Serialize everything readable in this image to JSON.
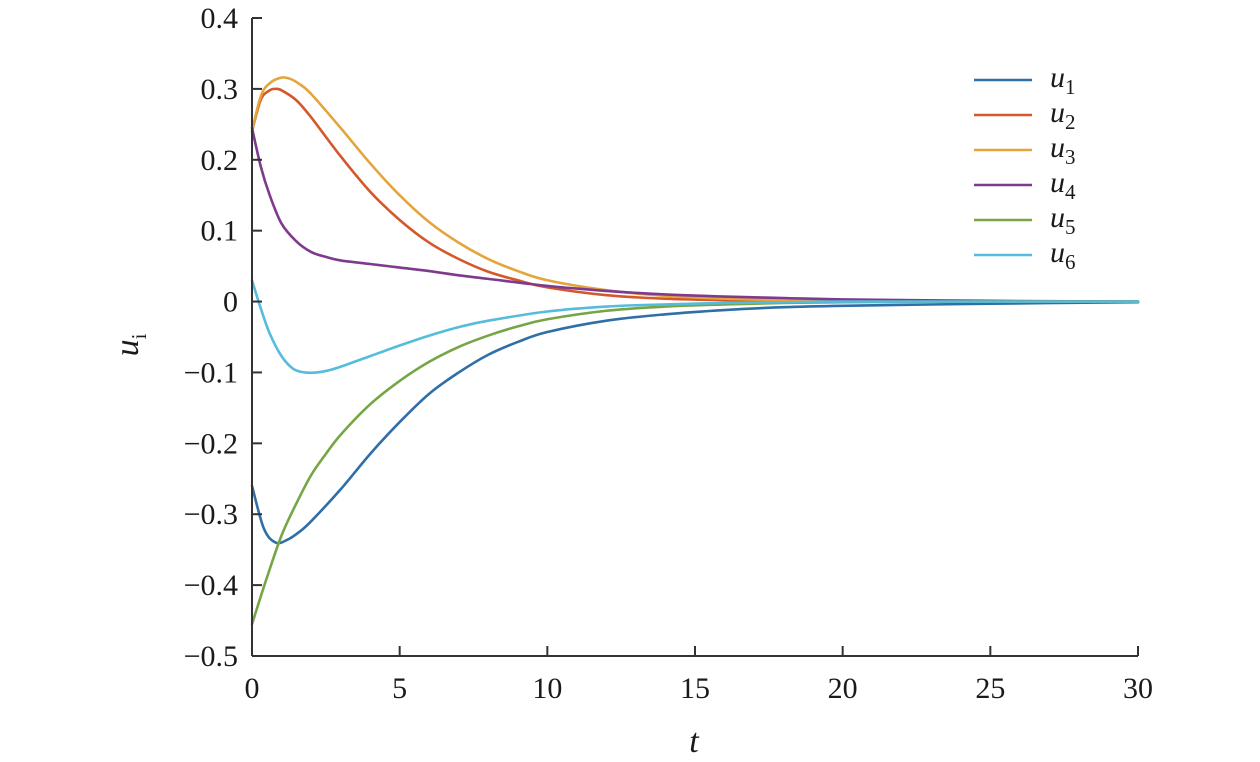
{
  "chart_data": {
    "type": "line",
    "xlabel": "t",
    "ylabel": "u",
    "ylabel_sub": "i",
    "xlim": [
      0,
      30
    ],
    "ylim": [
      -0.5,
      0.4
    ],
    "xticks": [
      0,
      5,
      10,
      15,
      20,
      25,
      30
    ],
    "xtick_labels": [
      "0",
      "5",
      "10",
      "15",
      "20",
      "25",
      "30"
    ],
    "yticks": [
      -0.5,
      -0.4,
      -0.3,
      -0.2,
      -0.1,
      0,
      0.1,
      0.2,
      0.3,
      0.4
    ],
    "ytick_labels": [
      "−0.5",
      "−0.4",
      "−0.3",
      "−0.2",
      "−0.1",
      "0",
      "0.1",
      "0.2",
      "0.3",
      "0.4"
    ],
    "grid": false,
    "legend_position": "top-right",
    "series": [
      {
        "name": "u",
        "sub": "1",
        "color": "#2f6fa6",
        "x": [
          0,
          0.4,
          0.8,
          1.2,
          1.6,
          2,
          3,
          4,
          5,
          6,
          7,
          8,
          9,
          10,
          12,
          14,
          16,
          18,
          20,
          25,
          30
        ],
        "y": [
          -0.26,
          -0.32,
          -0.34,
          -0.336,
          -0.325,
          -0.31,
          -0.265,
          -0.215,
          -0.17,
          -0.13,
          -0.1,
          -0.075,
          -0.057,
          -0.043,
          -0.027,
          -0.018,
          -0.012,
          -0.008,
          -0.006,
          -0.003,
          -0.001
        ]
      },
      {
        "name": "u",
        "sub": "2",
        "color": "#d4582a",
        "x": [
          0,
          0.3,
          0.6,
          0.8,
          1,
          1.5,
          2,
          3,
          4,
          5,
          6,
          7,
          8,
          9,
          10,
          12,
          14,
          16,
          18,
          20,
          25,
          30
        ],
        "y": [
          0.24,
          0.285,
          0.298,
          0.3,
          0.298,
          0.284,
          0.26,
          0.205,
          0.155,
          0.115,
          0.083,
          0.06,
          0.042,
          0.03,
          0.02,
          0.009,
          0.004,
          0.002,
          0.001,
          0.0005,
          0,
          0
        ]
      },
      {
        "name": "u",
        "sub": "3",
        "color": "#e3a53c",
        "x": [
          0,
          0.3,
          0.6,
          1,
          1.3,
          1.6,
          2,
          3,
          4,
          5,
          6,
          7,
          8,
          9,
          10,
          12,
          14,
          16,
          18,
          20,
          25,
          30
        ],
        "y": [
          0.24,
          0.29,
          0.308,
          0.316,
          0.314,
          0.307,
          0.293,
          0.245,
          0.195,
          0.15,
          0.112,
          0.083,
          0.06,
          0.043,
          0.03,
          0.016,
          0.008,
          0.004,
          0.002,
          0.001,
          0.0003,
          0
        ]
      },
      {
        "name": "u",
        "sub": "4",
        "color": "#7e3b8e",
        "x": [
          0,
          0.3,
          0.6,
          1,
          1.5,
          2,
          2.5,
          3,
          4,
          5,
          6,
          7,
          8,
          10,
          12,
          14,
          16,
          18,
          20,
          25,
          30
        ],
        "y": [
          0.245,
          0.19,
          0.15,
          0.11,
          0.085,
          0.07,
          0.063,
          0.058,
          0.053,
          0.048,
          0.043,
          0.037,
          0.032,
          0.022,
          0.015,
          0.01,
          0.007,
          0.005,
          0.003,
          0.001,
          0
        ]
      },
      {
        "name": "u",
        "sub": "5",
        "color": "#76a545",
        "x": [
          0,
          0.5,
          1,
          1.5,
          2,
          2.5,
          3,
          4,
          5,
          6,
          7,
          8,
          9,
          10,
          12,
          14,
          16,
          18,
          20,
          25,
          30
        ],
        "y": [
          -0.455,
          -0.39,
          -0.33,
          -0.285,
          -0.245,
          -0.215,
          -0.188,
          -0.145,
          -0.112,
          -0.085,
          -0.064,
          -0.048,
          -0.035,
          -0.025,
          -0.013,
          -0.007,
          -0.004,
          -0.002,
          -0.001,
          0,
          0
        ]
      },
      {
        "name": "u",
        "sub": "6",
        "color": "#56bcdc",
        "x": [
          0,
          0.3,
          0.6,
          1,
          1.4,
          1.8,
          2.2,
          2.6,
          3,
          4,
          5,
          6,
          7,
          8,
          10,
          12,
          14,
          16,
          18,
          20,
          25,
          30
        ],
        "y": [
          0.03,
          -0.01,
          -0.045,
          -0.077,
          -0.095,
          -0.1,
          -0.1,
          -0.097,
          -0.092,
          -0.077,
          -0.062,
          -0.048,
          -0.036,
          -0.027,
          -0.014,
          -0.007,
          -0.004,
          -0.002,
          -0.001,
          0,
          0,
          0
        ]
      }
    ]
  }
}
